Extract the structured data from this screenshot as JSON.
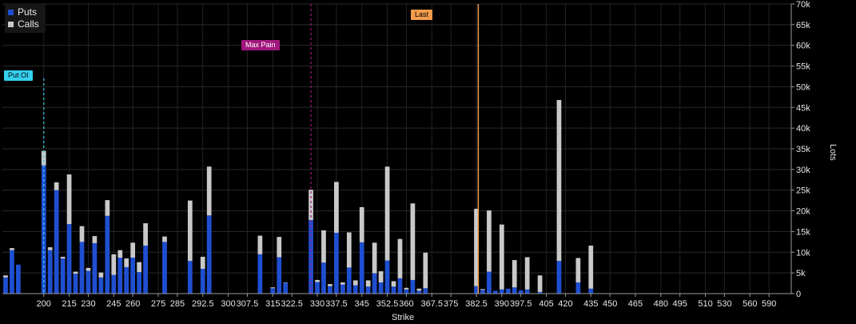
{
  "legend": [
    {
      "name": "Puts",
      "color": "#1f4fd1"
    },
    {
      "name": "Calls",
      "color": "#c9c9c9"
    }
  ],
  "markers": {
    "put_oi": {
      "label": "Put OI",
      "color": "#35d0f0",
      "strike_index": 6
    },
    "max_pain": {
      "label": "Max Pain",
      "color": "#a0177d",
      "strike_index": 48
    },
    "last": {
      "label": "Last",
      "color": "#f29c4b",
      "strike_index": 74.3
    }
  },
  "chart_data": {
    "type": "bar",
    "stacked": true,
    "xlabel": "Strike",
    "ylabel": "Lots",
    "ylim": [
      0,
      70000
    ],
    "yticks": [
      "0",
      "5k",
      "10k",
      "15k",
      "20k",
      "25k",
      "30k",
      "35k",
      "40k",
      "45k",
      "50k",
      "55k",
      "60k",
      "65k",
      "70k"
    ],
    "x_tick_labels": [
      "200",
      "215",
      "230",
      "245",
      "260",
      "275",
      "285",
      "292.5",
      "300",
      "307.5",
      "315",
      "322.5",
      "330",
      "337.5",
      "345",
      "352.5",
      "360",
      "367.5",
      "375",
      "382.5",
      "390",
      "397.5",
      "405",
      "420",
      "435",
      "450",
      "465",
      "480",
      "495",
      "510",
      "530",
      "560",
      "590"
    ],
    "grid": true,
    "legend_position": "top-left",
    "series": [
      {
        "name": "Puts",
        "color": "#1f4fd1",
        "values": [
          3900,
          10500,
          7000,
          0,
          0,
          0,
          31000,
          10500,
          25000,
          8500,
          16800,
          4800,
          12500,
          5500,
          12200,
          3900,
          18800,
          4500,
          8700,
          6400,
          8700,
          5200,
          11600,
          0,
          0,
          12500,
          0,
          0,
          0,
          7900,
          0,
          6000,
          18900,
          0,
          0,
          0,
          0,
          0,
          0,
          0,
          9500,
          0,
          1300,
          8800,
          2600,
          0,
          0,
          0,
          17800,
          2800,
          7500,
          1800,
          14700,
          2200,
          6300,
          2000,
          12400,
          1700,
          4900,
          2700,
          8000,
          1700,
          3700,
          1000,
          3300,
          700,
          1300,
          0,
          0,
          0,
          0,
          0,
          0,
          0,
          1800,
          900,
          5300,
          700,
          1000,
          1200,
          1500,
          800,
          1000,
          0,
          400,
          0,
          0,
          7900,
          0,
          0,
          2700,
          0,
          1200,
          0,
          0,
          0,
          0,
          0,
          0,
          0,
          0,
          0,
          0,
          0,
          0,
          0,
          0,
          0,
          0,
          0,
          0,
          0,
          0,
          0,
          0,
          0,
          0,
          0,
          0,
          0,
          0,
          0,
          0,
          0
        ]
      },
      {
        "name": "Calls",
        "color": "#c9c9c9",
        "values": [
          500,
          500,
          0,
          0,
          0,
          0,
          3500,
          700,
          1900,
          400,
          12000,
          500,
          3800,
          700,
          1700,
          1200,
          3800,
          5000,
          1800,
          2100,
          3600,
          2400,
          5400,
          0,
          0,
          1300,
          0,
          0,
          0,
          14600,
          0,
          2900,
          11800,
          0,
          0,
          0,
          0,
          0,
          0,
          0,
          4500,
          0,
          200,
          4900,
          100,
          0,
          0,
          0,
          7300,
          500,
          7800,
          500,
          12300,
          500,
          8500,
          1200,
          8500,
          1500,
          7400,
          2700,
          22700,
          1300,
          9500,
          400,
          18500,
          500,
          8600,
          0,
          0,
          0,
          0,
          0,
          0,
          0,
          18700,
          200,
          14800,
          0,
          15700,
          0,
          6600,
          0,
          7800,
          0,
          4000,
          0,
          0,
          38900,
          0,
          0,
          5900,
          0,
          10400,
          0,
          0,
          0,
          0,
          0,
          0,
          0,
          0,
          0,
          0,
          0,
          0,
          0,
          0,
          0,
          0,
          0,
          0,
          0,
          0,
          0,
          0,
          0,
          0,
          0,
          0,
          0,
          0,
          0,
          0,
          0
        ]
      }
    ]
  }
}
